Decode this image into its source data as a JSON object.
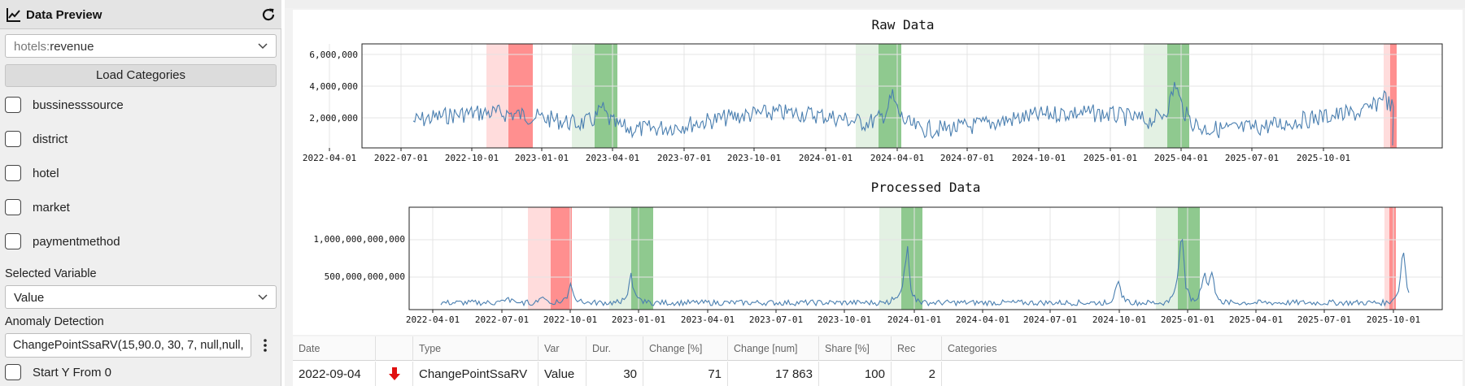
{
  "sidebar": {
    "title": "Data Preview",
    "dataset_select": {
      "prefix": "hotels:",
      "value": "revenue"
    },
    "load_button": "Load Categories",
    "categories": [
      "bussinesssource",
      "district",
      "hotel",
      "market",
      "paymentmethod"
    ],
    "selected_variable_label": "Selected Variable",
    "selected_variable": "Value",
    "anomaly_label": "Anomaly Detection",
    "anomaly_value": "ChangePointSsaRV(15,90.0, 30, 7, null,null,",
    "start_y_label": "Start Y From 0"
  },
  "charts": {
    "raw": {
      "title": "Raw Data",
      "y_ticks": [
        "6,000,000",
        "4,000,000",
        "2,000,000"
      ],
      "x_ticks": [
        "2022-04-01",
        "2022-07-01",
        "2022-10-01",
        "2023-01-01",
        "2023-04-01",
        "2023-07-01",
        "2023-10-01",
        "2024-01-01",
        "2024-04-01",
        "2024-07-01",
        "2024-10-01",
        "2025-01-01",
        "2025-04-01",
        "2025-07-01",
        "2025-10-01"
      ]
    },
    "processed": {
      "title": "Processed Data",
      "y_ticks": [
        "1,000,000,000,000",
        "500,000,000,000"
      ],
      "x_ticks": [
        "2022-04-01",
        "2022-07-01",
        "2022-10-01",
        "2023-01-01",
        "2023-04-01",
        "2023-07-01",
        "2023-10-01",
        "2024-01-01",
        "2024-04-01",
        "2024-07-01",
        "2024-10-01",
        "2025-01-01",
        "2025-04-01",
        "2025-07-01",
        "2025-10-01"
      ]
    },
    "colors": {
      "line": "#4a7fb0",
      "red": "#ff8f8f",
      "red_light": "#ffdcdc",
      "green": "#8fc98f",
      "green_light": "#e3f1e3"
    }
  },
  "table": {
    "headers": [
      "Date",
      "",
      "Type",
      "Var",
      "Dur.",
      "Change [%]",
      "Change [num]",
      "Share [%]",
      "Rec",
      "Categories"
    ],
    "row": {
      "date": "2022-09-04",
      "direction_icon": "arrow-down-icon",
      "type": "ChangePointSsaRV",
      "var": "Value",
      "dur": "30",
      "change_pct": "71",
      "change_num": "17 863",
      "share_pct": "100",
      "rec": "2",
      "categories": ""
    }
  }
}
